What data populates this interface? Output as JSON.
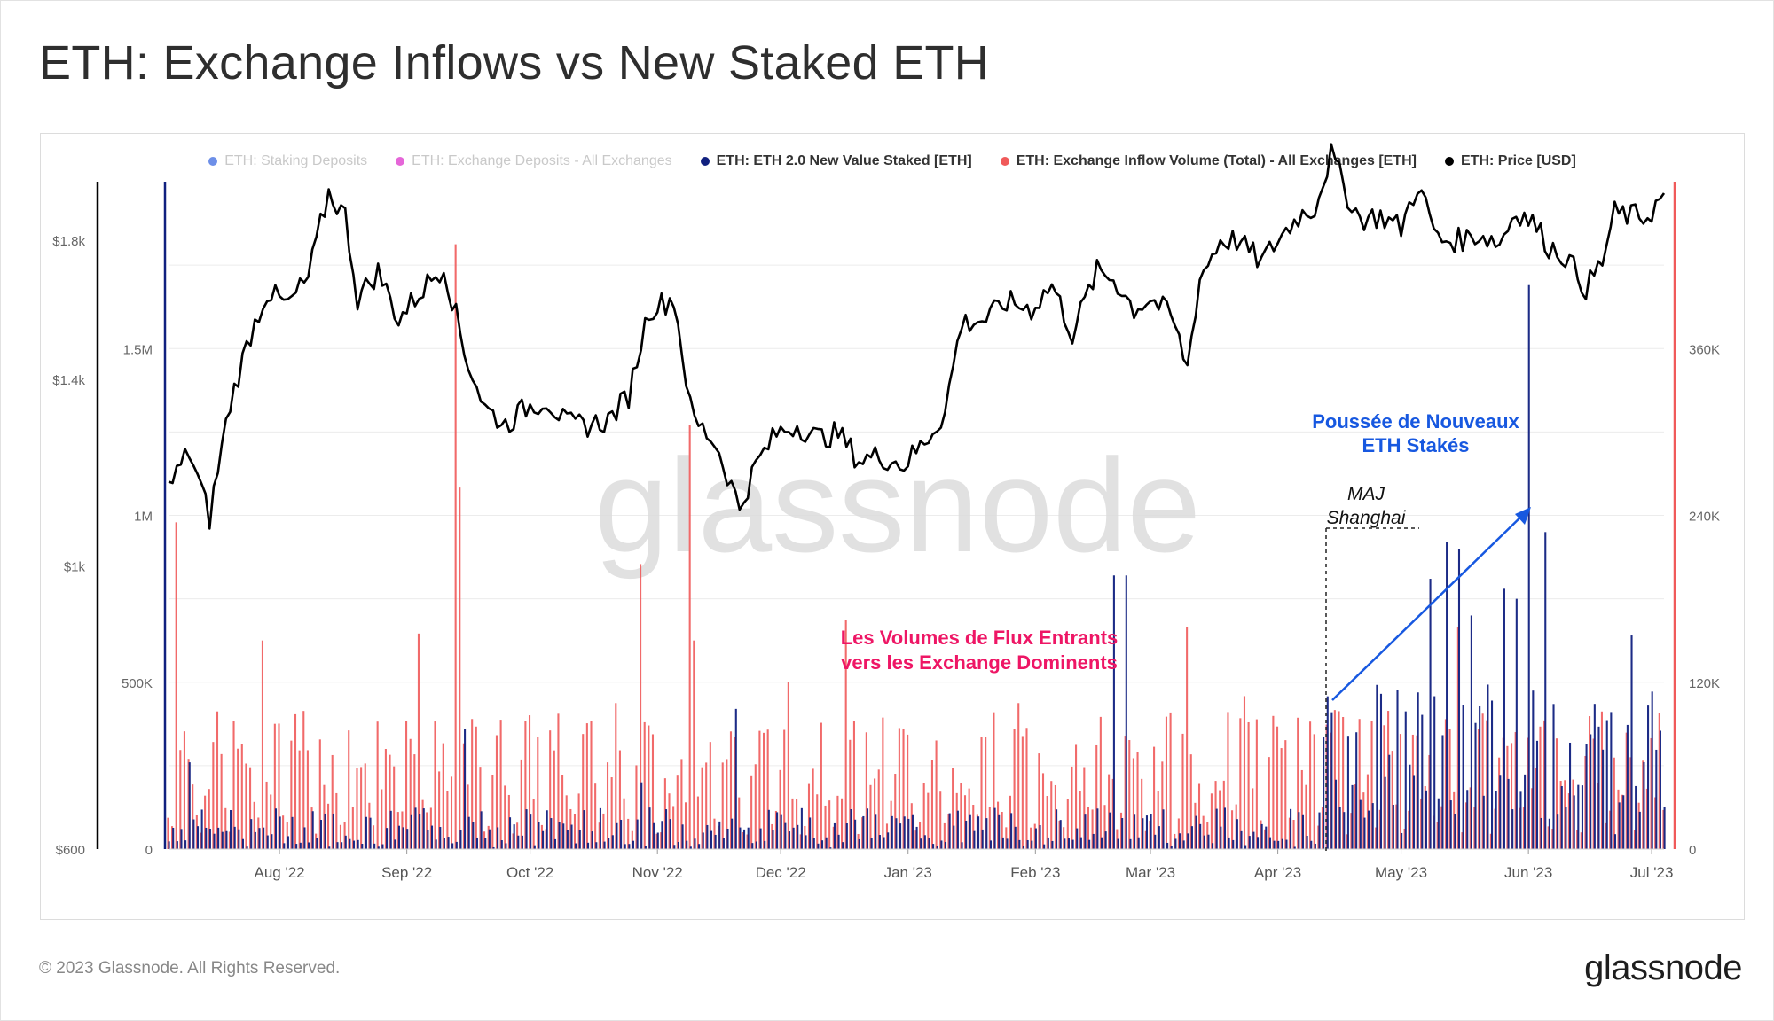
{
  "title": "ETH: Exchange Inflows vs New Staked ETH",
  "legend": [
    {
      "label": "ETH: Staking Deposits",
      "color": "#6d8fe8",
      "active": false
    },
    {
      "label": "ETH: Exchange Deposits - All Exchanges",
      "color": "#e566d8",
      "active": false
    },
    {
      "label": "ETH: ETH 2.0 New Value Staked [ETH]",
      "color": "#10207f",
      "active": true
    },
    {
      "label": "ETH: Exchange Inflow Volume (Total) - All Exchanges [ETH]",
      "color": "#f05a5a",
      "active": true
    },
    {
      "label": "ETH: Price [USD]",
      "color": "#000000",
      "active": true
    }
  ],
  "watermark": "glassnode",
  "annotations": {
    "inflow_label_1": "Les Volumes de Flux Entrants",
    "inflow_label_2": "vers les Exchange Dominents",
    "staked_label_1": "Poussée de Nouveaux",
    "staked_label_2": "ETH Stakés",
    "upgrade_label_1": "MAJ",
    "upgrade_label_2": "Shanghai"
  },
  "footer": {
    "copyright": "© 2023 Glassnode. All Rights Reserved.",
    "brand": "glassnode"
  },
  "colors": {
    "inflow": "#f05a5a",
    "staked": "#10207f",
    "price": "#000000",
    "inflow_annotation": "#ee1665",
    "staked_annotation": "#1758e0",
    "arrow": "#1758e0"
  },
  "chart_data": {
    "type": "bar",
    "x_ticks": [
      "Aug '22",
      "Sep '22",
      "Oct '22",
      "Nov '22",
      "Dec '22",
      "Jan '23",
      "Feb '23",
      "Mar '23",
      "Apr '23",
      "May '23",
      "Jun '23",
      "Jul '23"
    ],
    "x_range": [
      "2022-07-05",
      "2023-07-04"
    ],
    "axes": {
      "price": {
        "ticks": [
          "$600",
          "$1k",
          "$1.4k",
          "$1.8k"
        ],
        "tick_values": [
          600,
          1000,
          1400,
          1800
        ],
        "range": [
          600,
          2000
        ],
        "scale": "log",
        "color": "#000000"
      },
      "staked": {
        "ticks": [
          "0",
          "500K",
          "1M",
          "1.5M"
        ],
        "tick_values": [
          0,
          500000,
          1000000,
          1500000
        ],
        "range": [
          0,
          2000000
        ],
        "color": "#10207f"
      },
      "inflow": {
        "ticks": [
          "0",
          "120K",
          "240K",
          "360K"
        ],
        "tick_values": [
          0,
          120000,
          240000,
          360000
        ],
        "range": [
          0,
          480000
        ],
        "color": "#f05a5a"
      }
    },
    "grid": true,
    "legend_position": "top",
    "series": [
      {
        "name": "ETH: Price [USD]",
        "type": "line",
        "axis": "price",
        "x": [
          "2022-07-05",
          "2022-07-10",
          "2022-07-15",
          "2022-07-20",
          "2022-07-25",
          "2022-07-29",
          "2022-08-03",
          "2022-08-08",
          "2022-08-13",
          "2022-08-17",
          "2022-08-20",
          "2022-08-25",
          "2022-08-30",
          "2022-09-05",
          "2022-09-10",
          "2022-09-15",
          "2022-09-20",
          "2022-09-25",
          "2022-09-30",
          "2022-10-05",
          "2022-10-10",
          "2022-10-15",
          "2022-10-20",
          "2022-10-25",
          "2022-10-30",
          "2022-11-05",
          "2022-11-09",
          "2022-11-10",
          "2022-11-15",
          "2022-11-21",
          "2022-11-25",
          "2022-11-30",
          "2022-12-05",
          "2022-12-10",
          "2022-12-15",
          "2022-12-20",
          "2022-12-25",
          "2022-12-31",
          "2023-01-05",
          "2023-01-10",
          "2023-01-14",
          "2023-01-20",
          "2023-01-25",
          "2023-01-31",
          "2023-02-05",
          "2023-02-10",
          "2023-02-16",
          "2023-02-20",
          "2023-02-25",
          "2023-03-01",
          "2023-03-06",
          "2023-03-10",
          "2023-03-13",
          "2023-03-18",
          "2023-03-22",
          "2023-03-28",
          "2023-04-01",
          "2023-04-06",
          "2023-04-10",
          "2023-04-14",
          "2023-04-18",
          "2023-04-21",
          "2023-04-26",
          "2023-05-01",
          "2023-05-05",
          "2023-05-10",
          "2023-05-15",
          "2023-05-20",
          "2023-05-25",
          "2023-05-29",
          "2023-06-02",
          "2023-06-06",
          "2023-06-10",
          "2023-06-15",
          "2023-06-19",
          "2023-06-22",
          "2023-06-26",
          "2023-06-30",
          "2023-07-04"
        ],
        "values": [
          1150,
          1230,
          1090,
          1340,
          1520,
          1640,
          1600,
          1680,
          1960,
          1880,
          1620,
          1700,
          1560,
          1650,
          1720,
          1470,
          1330,
          1290,
          1330,
          1350,
          1290,
          1290,
          1300,
          1360,
          1590,
          1620,
          1330,
          1300,
          1250,
          1110,
          1200,
          1270,
          1290,
          1260,
          1270,
          1210,
          1220,
          1200,
          1250,
          1320,
          1550,
          1560,
          1610,
          1590,
          1660,
          1520,
          1700,
          1680,
          1590,
          1620,
          1570,
          1430,
          1680,
          1800,
          1800,
          1730,
          1800,
          1880,
          1910,
          2100,
          1950,
          1870,
          1880,
          1840,
          1990,
          1800,
          1800,
          1820,
          1790,
          1900,
          1860,
          1780,
          1750,
          1650,
          1730,
          1890,
          1880,
          1880,
          1950
        ]
      },
      {
        "name": "ETH: Exchange Inflow Volume (Total) - All Exchanges [ETH]",
        "type": "bar",
        "axis": "inflow",
        "note": "daily bars; representative readings",
        "x": [
          "2022-07-07",
          "2022-07-28",
          "2022-09-04",
          "2022-09-13",
          "2022-09-14",
          "2022-10-22",
          "2022-10-28",
          "2022-11-09",
          "2022-11-10",
          "2022-12-03",
          "2022-12-17",
          "2023-01-28",
          "2023-03-10",
          "2023-03-24",
          "2023-04-15",
          "2023-05-15",
          "2023-06-01"
        ],
        "values": [
          235000,
          150000,
          155000,
          435000,
          260000,
          105000,
          205000,
          305000,
          150000,
          120000,
          165000,
          105000,
          160000,
          110000,
          100000,
          160000,
          80000
        ]
      },
      {
        "name": "ETH: ETH 2.0 New Value Staked [ETH]",
        "type": "bar",
        "axis": "staked",
        "note": "daily bars; representative readings",
        "x": [
          "2022-07-10",
          "2022-09-15",
          "2022-10-28",
          "2022-11-20",
          "2023-02-20",
          "2023-02-23",
          "2023-04-14",
          "2023-04-20",
          "2023-05-08",
          "2023-05-12",
          "2023-05-15",
          "2023-05-18",
          "2023-05-26",
          "2023-05-29",
          "2023-06-01",
          "2023-06-05",
          "2023-06-26",
          "2023-06-30"
        ],
        "values": [
          260000,
          360000,
          200000,
          420000,
          820000,
          820000,
          410000,
          350000,
          810000,
          920000,
          900000,
          700000,
          780000,
          750000,
          1690000,
          950000,
          640000,
          430000
        ]
      }
    ]
  }
}
